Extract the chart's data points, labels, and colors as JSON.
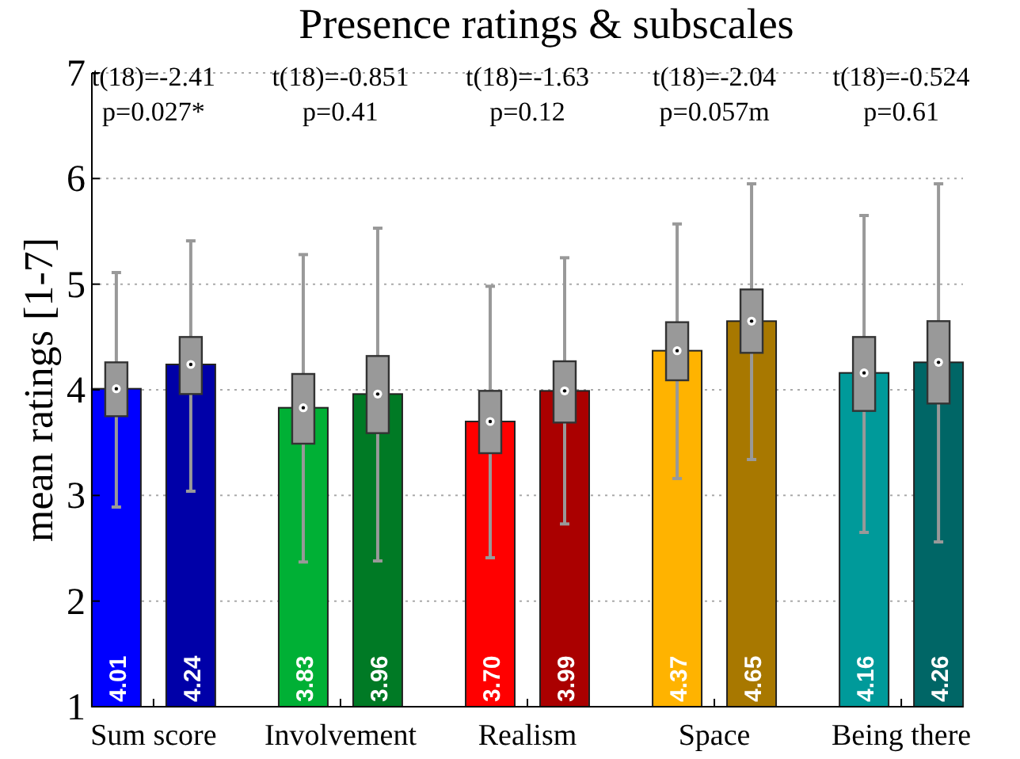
{
  "chart_data": {
    "type": "bar",
    "title": "Presence ratings & subscales",
    "ylabel": "mean ratings [1-7]",
    "categories": [
      "Sum score",
      "Involvement",
      "Realism",
      "Space",
      "Being there"
    ],
    "ylim": [
      1,
      7
    ],
    "yticks": [
      1,
      2,
      3,
      4,
      5,
      6,
      7
    ],
    "grid": "y",
    "series": [
      {
        "colors": [
          "#0000ff",
          "#00b035",
          "#ff0000",
          "#ffb300",
          "#009a9a"
        ],
        "values": [
          4.01,
          3.83,
          3.7,
          4.37,
          4.16
        ],
        "value_labels": [
          "4.01",
          "3.83",
          "3.70",
          "4.37",
          "4.16"
        ]
      },
      {
        "colors": [
          "#0000a8",
          "#007a25",
          "#aa0000",
          "#a87800",
          "#006666"
        ],
        "values": [
          4.24,
          3.96,
          3.99,
          4.65,
          4.26
        ],
        "value_labels": [
          "4.24",
          "3.96",
          "3.99",
          "4.65",
          "4.26"
        ]
      },
      {
        "type": "box",
        "color": "#999999",
        "boxes": [
          {
            "low": 2.89,
            "q1": 3.75,
            "median": 4.01,
            "q3": 4.26,
            "high": 5.11
          },
          {
            "low": 2.37,
            "q1": 3.49,
            "median": 3.83,
            "q3": 4.15,
            "high": 5.28
          },
          {
            "low": 2.41,
            "q1": 3.4,
            "median": 3.7,
            "q3": 3.99,
            "high": 4.98
          },
          {
            "low": 3.16,
            "q1": 4.09,
            "median": 4.37,
            "q3": 4.64,
            "high": 5.57
          },
          {
            "low": 2.65,
            "q1": 3.8,
            "median": 4.16,
            "q3": 4.5,
            "high": 5.65
          }
        ]
      },
      {
        "type": "box",
        "color": "#999999",
        "boxes": [
          {
            "low": 3.04,
            "q1": 3.96,
            "median": 4.24,
            "q3": 4.5,
            "high": 5.41
          },
          {
            "low": 2.38,
            "q1": 3.59,
            "median": 3.96,
            "q3": 4.32,
            "high": 5.53
          },
          {
            "low": 2.73,
            "q1": 3.69,
            "median": 3.99,
            "q3": 4.27,
            "high": 5.25
          },
          {
            "low": 3.34,
            "q1": 4.35,
            "median": 4.65,
            "q3": 4.95,
            "high": 5.95
          },
          {
            "low": 2.56,
            "q1": 3.87,
            "median": 4.26,
            "q3": 4.65,
            "high": 5.95
          }
        ]
      }
    ],
    "annotations": [
      "t(18)=-2.41\np=0.027*",
      "t(18)=-0.851\np=0.41",
      "t(18)=-1.63\np=0.12",
      "t(18)=-2.04\np=0.057m",
      "t(18)=-0.524\np=0.61"
    ]
  }
}
